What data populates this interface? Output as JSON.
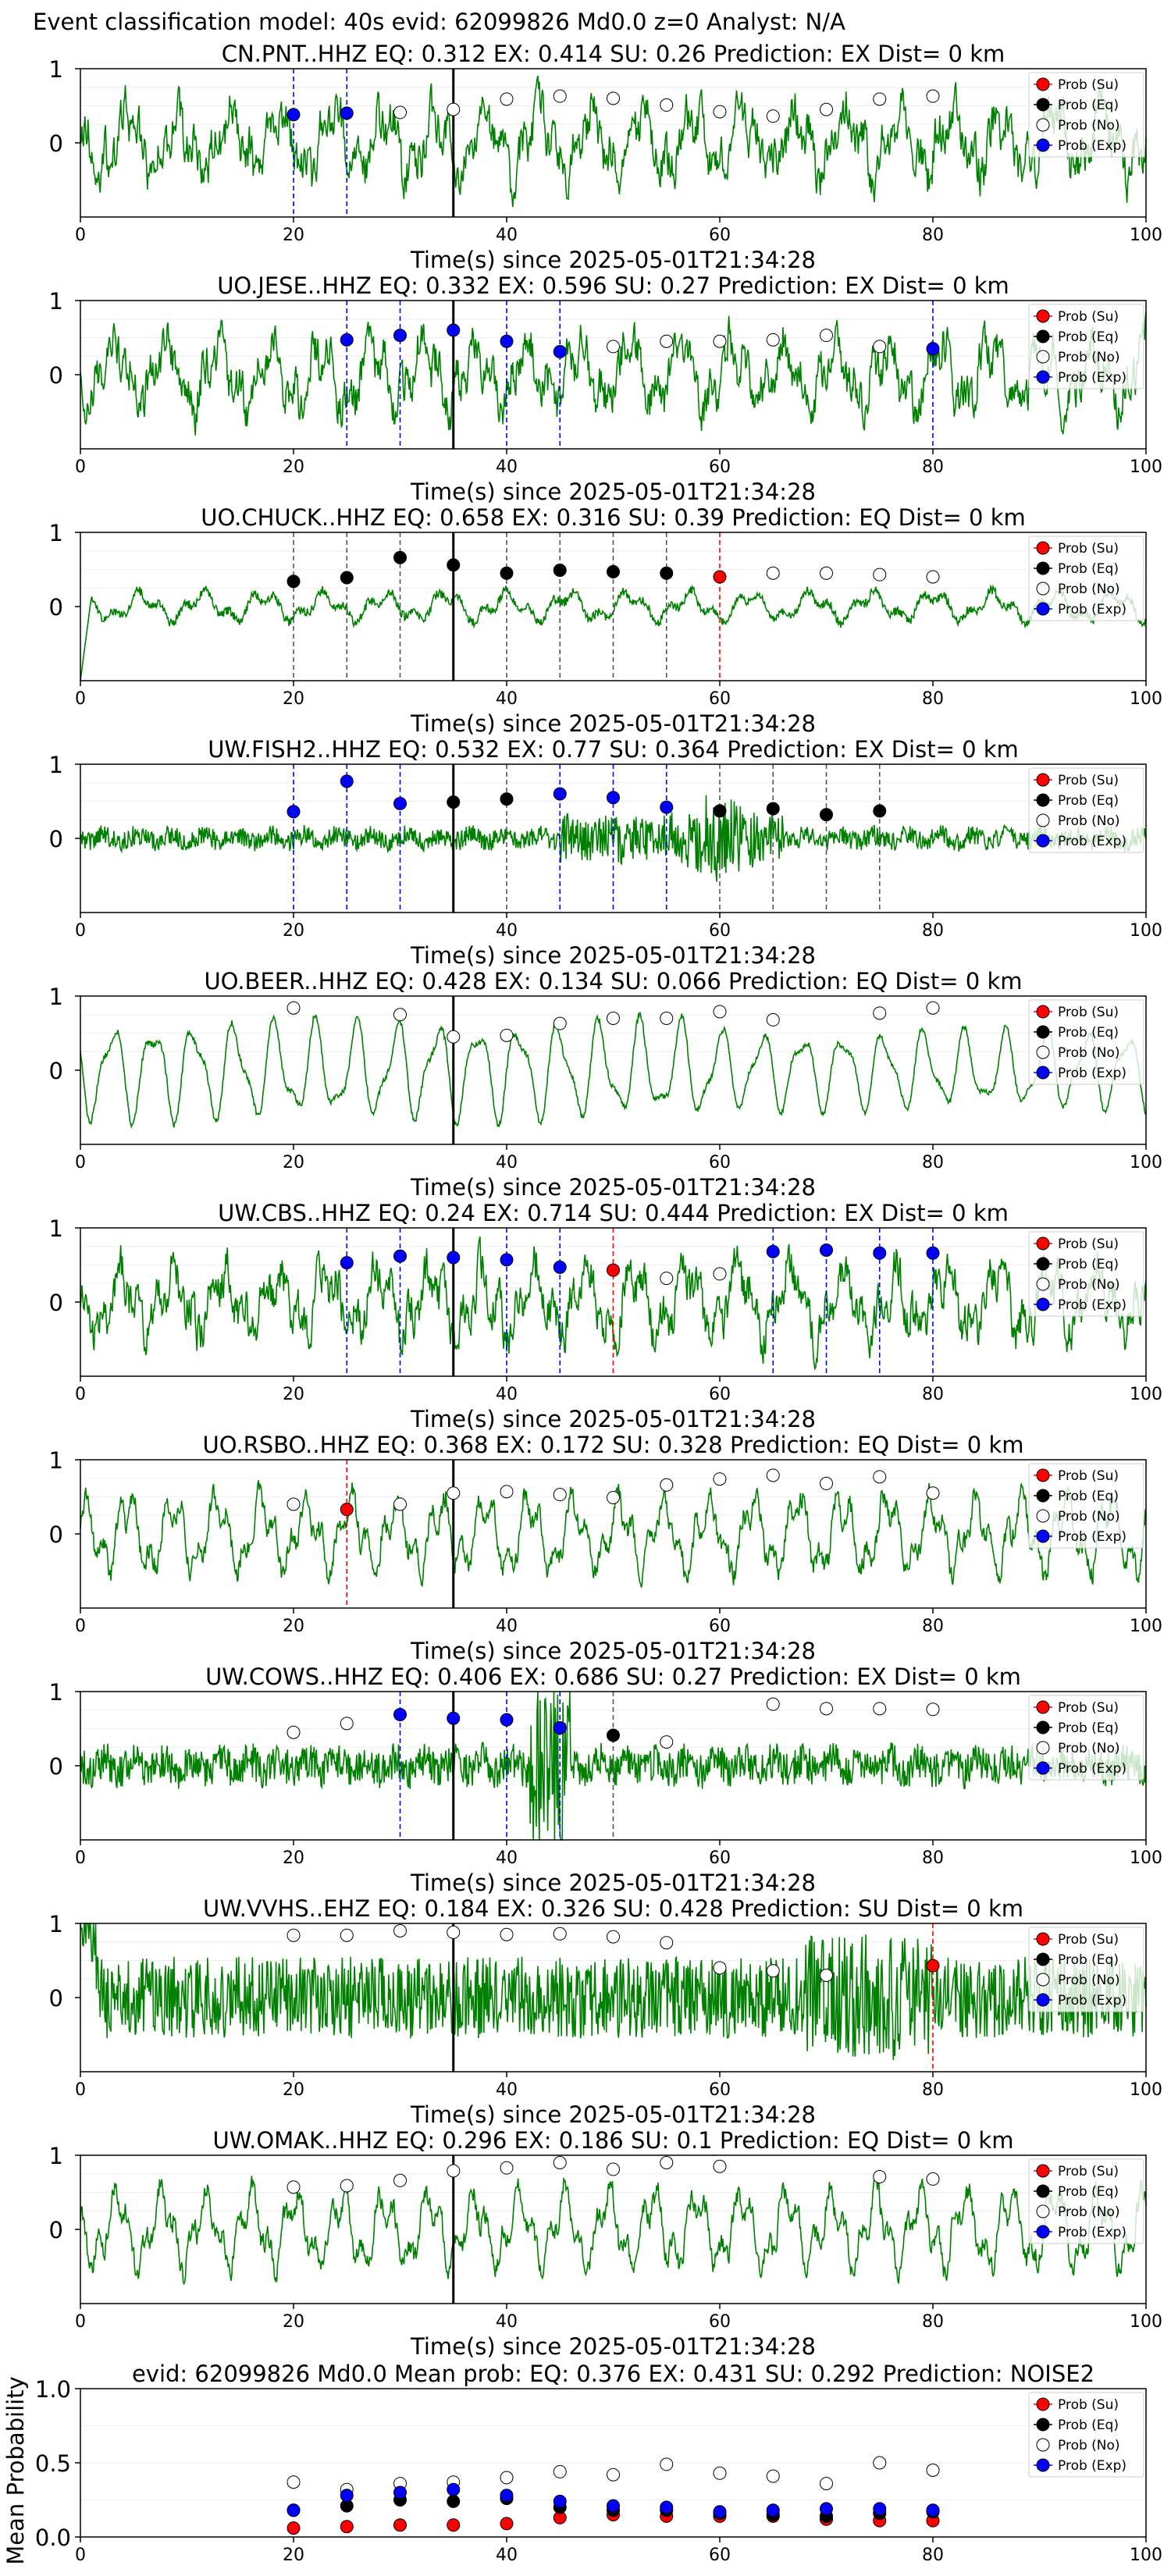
{
  "figure": {
    "suptitle": "Event classification model: 40s evid: 62099826 Md0.0 z=0 Analyst: N/A",
    "legend_labels": [
      "Prob (Su)",
      "Prob (Eq)",
      "Prob (No)",
      "Prob (Exp)"
    ],
    "colors": {
      "waveform": "#008000",
      "su": "#ff0000",
      "eq": "#000000",
      "no": "#ffffff",
      "exp": "#0000ff",
      "arrival_line": "#000000"
    }
  },
  "chart_data": [
    {
      "type": "line",
      "station": "CN.PNT..HHZ",
      "title": "CN.PNT..HHZ   EQ: 0.312  EX: 0.414  SU: 0.26   Prediction: EX    Dist= 0 km",
      "xlabel": "Time(s) since 2025-05-01T21:34:28",
      "xlim": [
        0,
        100
      ],
      "ylim": [
        -1,
        1
      ],
      "xticks": [
        "0",
        "20",
        "40",
        "60",
        "80",
        "100"
      ],
      "yticks": [
        "1",
        "0"
      ],
      "arrival": 35,
      "waveform": "broadband",
      "points": [
        {
          "t": 20,
          "cls": "exp",
          "p": 0.38
        },
        {
          "t": 25,
          "cls": "exp",
          "p": 0.4
        },
        {
          "t": 30,
          "cls": "no",
          "p": 0.41
        },
        {
          "t": 35,
          "cls": "no",
          "p": 0.45
        },
        {
          "t": 40,
          "cls": "no",
          "p": 0.59
        },
        {
          "t": 45,
          "cls": "no",
          "p": 0.63
        },
        {
          "t": 50,
          "cls": "no",
          "p": 0.6
        },
        {
          "t": 55,
          "cls": "no",
          "p": 0.51
        },
        {
          "t": 60,
          "cls": "no",
          "p": 0.42
        },
        {
          "t": 65,
          "cls": "no",
          "p": 0.36
        },
        {
          "t": 70,
          "cls": "no",
          "p": 0.45
        },
        {
          "t": 75,
          "cls": "no",
          "p": 0.59
        },
        {
          "t": 80,
          "cls": "no",
          "p": 0.63
        }
      ]
    },
    {
      "type": "line",
      "station": "UO.JESE..HHZ",
      "title": "UO.JESE..HHZ   EQ: 0.332  EX: 0.596  SU: 0.27   Prediction: EX    Dist= 0 km",
      "xlabel": "Time(s) since 2025-05-01T21:34:28",
      "xlim": [
        0,
        100
      ],
      "ylim": [
        -1,
        1
      ],
      "xticks": [
        "0",
        "20",
        "40",
        "60",
        "80",
        "100"
      ],
      "yticks": [
        "1",
        "0"
      ],
      "arrival": 35,
      "waveform": "broadband",
      "points": [
        {
          "t": 25,
          "cls": "exp",
          "p": 0.47
        },
        {
          "t": 30,
          "cls": "exp",
          "p": 0.53
        },
        {
          "t": 35,
          "cls": "exp",
          "p": 0.6
        },
        {
          "t": 40,
          "cls": "exp",
          "p": 0.45
        },
        {
          "t": 45,
          "cls": "exp",
          "p": 0.31
        },
        {
          "t": 50,
          "cls": "no",
          "p": 0.38
        },
        {
          "t": 55,
          "cls": "no",
          "p": 0.45
        },
        {
          "t": 60,
          "cls": "no",
          "p": 0.45
        },
        {
          "t": 65,
          "cls": "no",
          "p": 0.47
        },
        {
          "t": 70,
          "cls": "no",
          "p": 0.53
        },
        {
          "t": 75,
          "cls": "no",
          "p": 0.38
        },
        {
          "t": 80,
          "cls": "exp",
          "p": 0.35
        }
      ]
    },
    {
      "type": "line",
      "station": "UO.CHUCK..HHZ",
      "title": "UO.CHUCK..HHZ   EQ: 0.658  EX: 0.316  SU: 0.39   Prediction: EQ    Dist= 0 km",
      "xlabel": "Time(s) since 2025-05-01T21:34:28",
      "xlim": [
        0,
        100
      ],
      "ylim": [
        -1,
        1
      ],
      "xticks": [
        "0",
        "20",
        "40",
        "60",
        "80",
        "100"
      ],
      "yticks": [
        "1",
        "0"
      ],
      "arrival": 35,
      "waveform": "smooth",
      "points": [
        {
          "t": 20,
          "cls": "eq",
          "p": 0.34
        },
        {
          "t": 25,
          "cls": "eq",
          "p": 0.39
        },
        {
          "t": 30,
          "cls": "eq",
          "p": 0.66
        },
        {
          "t": 35,
          "cls": "eq",
          "p": 0.56
        },
        {
          "t": 40,
          "cls": "eq",
          "p": 0.45
        },
        {
          "t": 45,
          "cls": "eq",
          "p": 0.49
        },
        {
          "t": 50,
          "cls": "eq",
          "p": 0.47
        },
        {
          "t": 55,
          "cls": "eq",
          "p": 0.45
        },
        {
          "t": 60,
          "cls": "su",
          "p": 0.4
        },
        {
          "t": 65,
          "cls": "no",
          "p": 0.45
        },
        {
          "t": 70,
          "cls": "no",
          "p": 0.45
        },
        {
          "t": 75,
          "cls": "no",
          "p": 0.43
        },
        {
          "t": 80,
          "cls": "no",
          "p": 0.4
        }
      ]
    },
    {
      "type": "line",
      "station": "UW.FISH2..HHZ",
      "title": "UW.FISH2..HHZ   EQ: 0.532  EX: 0.77  SU: 0.364   Prediction: EX    Dist= 0 km",
      "xlabel": "Time(s) since 2025-05-01T21:34:28",
      "xlim": [
        0,
        100
      ],
      "ylim": [
        -1,
        1
      ],
      "xticks": [
        "0",
        "20",
        "40",
        "60",
        "80",
        "100"
      ],
      "yticks": [
        "1",
        "0"
      ],
      "arrival": 35,
      "waveform": "quiet",
      "points": [
        {
          "t": 20,
          "cls": "exp",
          "p": 0.36
        },
        {
          "t": 25,
          "cls": "exp",
          "p": 0.77
        },
        {
          "t": 30,
          "cls": "exp",
          "p": 0.47
        },
        {
          "t": 35,
          "cls": "eq",
          "p": 0.49
        },
        {
          "t": 40,
          "cls": "eq",
          "p": 0.53
        },
        {
          "t": 45,
          "cls": "exp",
          "p": 0.6
        },
        {
          "t": 50,
          "cls": "exp",
          "p": 0.55
        },
        {
          "t": 55,
          "cls": "exp",
          "p": 0.42
        },
        {
          "t": 60,
          "cls": "eq",
          "p": 0.37
        },
        {
          "t": 65,
          "cls": "eq",
          "p": 0.4
        },
        {
          "t": 70,
          "cls": "eq",
          "p": 0.32
        },
        {
          "t": 75,
          "cls": "eq",
          "p": 0.37
        }
      ]
    },
    {
      "type": "line",
      "station": "UO.BEER..HHZ",
      "title": "UO.BEER..HHZ   EQ: 0.428  EX: 0.134  SU: 0.066   Prediction: EQ    Dist= 0 km",
      "xlabel": "Time(s) since 2025-05-01T21:34:28",
      "xlim": [
        0,
        100
      ],
      "ylim": [
        -1,
        1
      ],
      "xticks": [
        "0",
        "20",
        "40",
        "60",
        "80",
        "100"
      ],
      "yticks": [
        "1",
        "0"
      ],
      "arrival": 35,
      "waveform": "lowfreq",
      "points": [
        {
          "t": 20,
          "cls": "no",
          "p": 0.84
        },
        {
          "t": 30,
          "cls": "no",
          "p": 0.75
        },
        {
          "t": 35,
          "cls": "no",
          "p": 0.45
        },
        {
          "t": 40,
          "cls": "no",
          "p": 0.47
        },
        {
          "t": 45,
          "cls": "no",
          "p": 0.63
        },
        {
          "t": 50,
          "cls": "no",
          "p": 0.7
        },
        {
          "t": 55,
          "cls": "no",
          "p": 0.7
        },
        {
          "t": 60,
          "cls": "no",
          "p": 0.79
        },
        {
          "t": 65,
          "cls": "no",
          "p": 0.68
        },
        {
          "t": 75,
          "cls": "no",
          "p": 0.77
        },
        {
          "t": 80,
          "cls": "no",
          "p": 0.84
        }
      ]
    },
    {
      "type": "line",
      "station": "UW.CBS..HHZ",
      "title": "UW.CBS..HHZ   EQ: 0.24  EX: 0.714  SU: 0.444   Prediction: EX    Dist= 0 km",
      "xlabel": "Time(s) since 2025-05-01T21:34:28",
      "xlim": [
        0,
        100
      ],
      "ylim": [
        -1,
        1
      ],
      "xticks": [
        "0",
        "20",
        "40",
        "60",
        "80",
        "100"
      ],
      "yticks": [
        "1",
        "0"
      ],
      "arrival": 35,
      "waveform": "broadband",
      "points": [
        {
          "t": 25,
          "cls": "exp",
          "p": 0.53
        },
        {
          "t": 30,
          "cls": "exp",
          "p": 0.62
        },
        {
          "t": 35,
          "cls": "exp",
          "p": 0.6
        },
        {
          "t": 40,
          "cls": "exp",
          "p": 0.57
        },
        {
          "t": 45,
          "cls": "exp",
          "p": 0.47
        },
        {
          "t": 50,
          "cls": "su",
          "p": 0.43
        },
        {
          "t": 55,
          "cls": "no",
          "p": 0.32
        },
        {
          "t": 60,
          "cls": "no",
          "p": 0.38
        },
        {
          "t": 65,
          "cls": "exp",
          "p": 0.68
        },
        {
          "t": 70,
          "cls": "exp",
          "p": 0.7
        },
        {
          "t": 75,
          "cls": "exp",
          "p": 0.66
        },
        {
          "t": 80,
          "cls": "exp",
          "p": 0.66
        }
      ]
    },
    {
      "type": "line",
      "station": "UO.RSBO..HHZ",
      "title": "UO.RSBO..HHZ   EQ: 0.368  EX: 0.172  SU: 0.328   Prediction: EQ    Dist= 0 km",
      "xlabel": "Time(s) since 2025-05-01T21:34:28",
      "xlim": [
        0,
        100
      ],
      "ylim": [
        -1,
        1
      ],
      "xticks": [
        "0",
        "20",
        "40",
        "60",
        "80",
        "100"
      ],
      "yticks": [
        "1",
        "0"
      ],
      "arrival": 35,
      "waveform": "medium",
      "points": [
        {
          "t": 20,
          "cls": "no",
          "p": 0.4
        },
        {
          "t": 25,
          "cls": "su",
          "p": 0.33
        },
        {
          "t": 30,
          "cls": "no",
          "p": 0.4
        },
        {
          "t": 35,
          "cls": "no",
          "p": 0.55
        },
        {
          "t": 40,
          "cls": "no",
          "p": 0.57
        },
        {
          "t": 45,
          "cls": "no",
          "p": 0.53
        },
        {
          "t": 50,
          "cls": "no",
          "p": 0.49
        },
        {
          "t": 55,
          "cls": "no",
          "p": 0.66
        },
        {
          "t": 60,
          "cls": "no",
          "p": 0.74
        },
        {
          "t": 65,
          "cls": "no",
          "p": 0.79
        },
        {
          "t": 70,
          "cls": "no",
          "p": 0.68
        },
        {
          "t": 75,
          "cls": "no",
          "p": 0.77
        },
        {
          "t": 80,
          "cls": "no",
          "p": 0.55
        }
      ]
    },
    {
      "type": "line",
      "station": "UW.COWS..HHZ",
      "title": "UW.COWS..HHZ   EQ: 0.406  EX: 0.686  SU: 0.27   Prediction: EX    Dist= 0 km",
      "xlabel": "Time(s) since 2025-05-01T21:34:28",
      "xlim": [
        0,
        100
      ],
      "ylim": [
        -1,
        1
      ],
      "xticks": [
        "0",
        "20",
        "40",
        "60",
        "80",
        "100"
      ],
      "yticks": [
        "1",
        "0"
      ],
      "arrival": 35,
      "waveform": "burst",
      "points": [
        {
          "t": 20,
          "cls": "no",
          "p": 0.45
        },
        {
          "t": 25,
          "cls": "no",
          "p": 0.57
        },
        {
          "t": 30,
          "cls": "exp",
          "p": 0.69
        },
        {
          "t": 35,
          "cls": "exp",
          "p": 0.64
        },
        {
          "t": 40,
          "cls": "exp",
          "p": 0.62
        },
        {
          "t": 45,
          "cls": "exp",
          "p": 0.51
        },
        {
          "t": 50,
          "cls": "eq",
          "p": 0.41
        },
        {
          "t": 55,
          "cls": "no",
          "p": 0.32
        },
        {
          "t": 65,
          "cls": "no",
          "p": 0.83
        },
        {
          "t": 70,
          "cls": "no",
          "p": 0.77
        },
        {
          "t": 75,
          "cls": "no",
          "p": 0.77
        },
        {
          "t": 80,
          "cls": "no",
          "p": 0.76
        }
      ]
    },
    {
      "type": "line",
      "station": "UW.VVHS..EHZ",
      "title": "UW.VVHS..EHZ   EQ: 0.184  EX: 0.326  SU: 0.428   Prediction: SU    Dist= 0 km",
      "xlabel": "Time(s) since 2025-05-01T21:34:28",
      "xlim": [
        0,
        100
      ],
      "ylim": [
        -1,
        1
      ],
      "xticks": [
        "0",
        "20",
        "40",
        "60",
        "80",
        "100"
      ],
      "yticks": [
        "1",
        "0"
      ],
      "arrival": 35,
      "waveform": "dense",
      "points": [
        {
          "t": 20,
          "cls": "no",
          "p": 0.84
        },
        {
          "t": 25,
          "cls": "no",
          "p": 0.84
        },
        {
          "t": 30,
          "cls": "no",
          "p": 0.9
        },
        {
          "t": 35,
          "cls": "no",
          "p": 0.88
        },
        {
          "t": 40,
          "cls": "no",
          "p": 0.85
        },
        {
          "t": 45,
          "cls": "no",
          "p": 0.86
        },
        {
          "t": 50,
          "cls": "no",
          "p": 0.82
        },
        {
          "t": 55,
          "cls": "no",
          "p": 0.74
        },
        {
          "t": 60,
          "cls": "no",
          "p": 0.4
        },
        {
          "t": 65,
          "cls": "no",
          "p": 0.36
        },
        {
          "t": 70,
          "cls": "no",
          "p": 0.3
        },
        {
          "t": 80,
          "cls": "su",
          "p": 0.43
        }
      ]
    },
    {
      "type": "line",
      "station": "UW.OMAK..HHZ",
      "title": "UW.OMAK..HHZ   EQ: 0.296  EX: 0.186  SU: 0.1   Prediction: EQ    Dist= 0 km",
      "xlabel": "Time(s) since 2025-05-01T21:34:28",
      "xlim": [
        0,
        100
      ],
      "ylim": [
        -1,
        1
      ],
      "xticks": [
        "0",
        "20",
        "40",
        "60",
        "80",
        "100"
      ],
      "yticks": [
        "1",
        "0"
      ],
      "arrival": 35,
      "waveform": "medium",
      "points": [
        {
          "t": 20,
          "cls": "no",
          "p": 0.57
        },
        {
          "t": 25,
          "cls": "no",
          "p": 0.59
        },
        {
          "t": 30,
          "cls": "no",
          "p": 0.66
        },
        {
          "t": 35,
          "cls": "no",
          "p": 0.79
        },
        {
          "t": 40,
          "cls": "no",
          "p": 0.83
        },
        {
          "t": 45,
          "cls": "no",
          "p": 0.9
        },
        {
          "t": 50,
          "cls": "no",
          "p": 0.81
        },
        {
          "t": 55,
          "cls": "no",
          "p": 0.9
        },
        {
          "t": 60,
          "cls": "no",
          "p": 0.85
        },
        {
          "t": 75,
          "cls": "no",
          "p": 0.71
        },
        {
          "t": 80,
          "cls": "no",
          "p": 0.68
        }
      ]
    },
    {
      "type": "scatter",
      "station": "mean",
      "title": "evid: 62099826  Md0.0   Mean prob:   EQ: 0.376  EX: 0.431  SU: 0.292   Prediction: NOISE2",
      "xlabel": "",
      "ylabel": "Mean Probability",
      "xlim": [
        0,
        100
      ],
      "ylim": [
        0,
        1
      ],
      "xticks": [
        "0",
        "20",
        "40",
        "60",
        "80",
        "100"
      ],
      "yticks": [
        "1.0",
        "0.5",
        "0.0"
      ],
      "x": [
        20,
        25,
        30,
        35,
        40,
        45,
        50,
        55,
        60,
        65,
        70,
        75,
        80
      ],
      "series": [
        {
          "name": "Prob (Su)",
          "cls": "su",
          "values": [
            0.06,
            0.07,
            0.08,
            0.08,
            0.09,
            0.13,
            0.15,
            0.14,
            0.14,
            0.14,
            0.12,
            0.11,
            0.11
          ]
        },
        {
          "name": "Prob (Eq)",
          "cls": "eq",
          "values": [
            0.18,
            0.21,
            0.25,
            0.24,
            0.26,
            0.2,
            0.18,
            0.18,
            0.16,
            0.15,
            0.14,
            0.16,
            0.17
          ]
        },
        {
          "name": "Prob (No)",
          "cls": "no",
          "values": [
            0.37,
            0.32,
            0.36,
            0.37,
            0.4,
            0.44,
            0.42,
            0.49,
            0.43,
            0.41,
            0.36,
            0.5,
            0.45
          ]
        },
        {
          "name": "Prob (Exp)",
          "cls": "exp",
          "values": [
            0.18,
            0.28,
            0.3,
            0.32,
            0.28,
            0.24,
            0.21,
            0.2,
            0.17,
            0.18,
            0.19,
            0.19,
            0.18
          ]
        }
      ]
    }
  ]
}
